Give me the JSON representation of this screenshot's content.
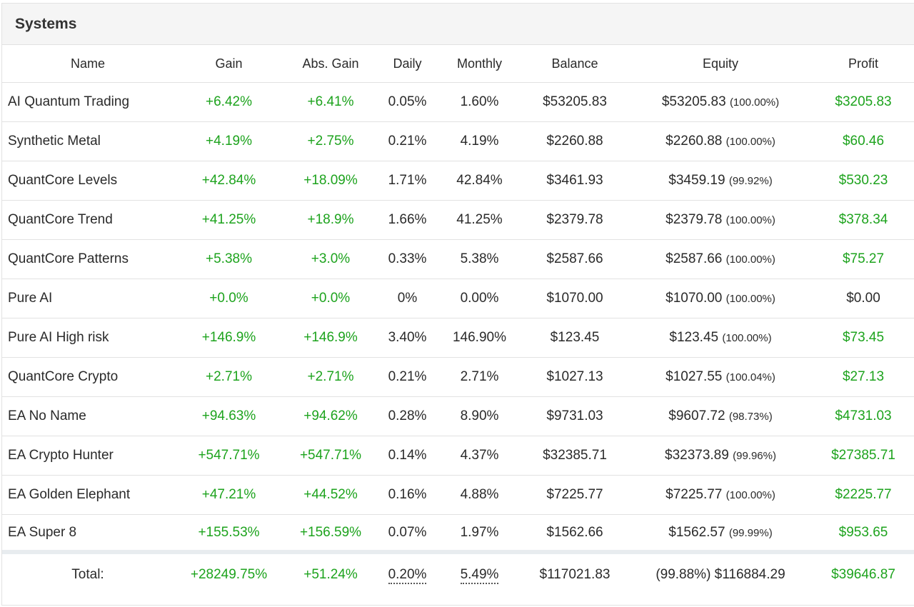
{
  "panel": {
    "title": "Systems"
  },
  "columns": [
    "Name",
    "Gain",
    "Abs. Gain",
    "Daily",
    "Monthly",
    "Balance",
    "Equity",
    "Profit"
  ],
  "rows": [
    {
      "name": "AI Quantum Trading",
      "gain": "+6.42%",
      "abs_gain": "+6.41%",
      "daily": "0.05%",
      "monthly": "1.60%",
      "balance": "$53205.83",
      "equity": "$53205.83",
      "equity_pct": "(100.00%)",
      "profit": "$3205.83",
      "profit_positive": true
    },
    {
      "name": "Synthetic Metal",
      "gain": "+4.19%",
      "abs_gain": "+2.75%",
      "daily": "0.21%",
      "monthly": "4.19%",
      "balance": "$2260.88",
      "equity": "$2260.88",
      "equity_pct": "(100.00%)",
      "profit": "$60.46",
      "profit_positive": true
    },
    {
      "name": "QuantCore Levels",
      "gain": "+42.84%",
      "abs_gain": "+18.09%",
      "daily": "1.71%",
      "monthly": "42.84%",
      "balance": "$3461.93",
      "equity": "$3459.19",
      "equity_pct": "(99.92%)",
      "profit": "$530.23",
      "profit_positive": true
    },
    {
      "name": "QuantCore Trend",
      "gain": "+41.25%",
      "abs_gain": "+18.9%",
      "daily": "1.66%",
      "monthly": "41.25%",
      "balance": "$2379.78",
      "equity": "$2379.78",
      "equity_pct": "(100.00%)",
      "profit": "$378.34",
      "profit_positive": true
    },
    {
      "name": "QuantCore Patterns",
      "gain": "+5.38%",
      "abs_gain": "+3.0%",
      "daily": "0.33%",
      "monthly": "5.38%",
      "balance": "$2587.66",
      "equity": "$2587.66",
      "equity_pct": "(100.00%)",
      "profit": "$75.27",
      "profit_positive": true
    },
    {
      "name": "Pure AI",
      "gain": "+0.0%",
      "abs_gain": "+0.0%",
      "daily": "0%",
      "monthly": "0.00%",
      "balance": "$1070.00",
      "equity": "$1070.00",
      "equity_pct": "(100.00%)",
      "profit": "$0.00",
      "profit_positive": false
    },
    {
      "name": "Pure AI High risk",
      "gain": "+146.9%",
      "abs_gain": "+146.9%",
      "daily": "3.40%",
      "monthly": "146.90%",
      "balance": "$123.45",
      "equity": "$123.45",
      "equity_pct": "(100.00%)",
      "profit": "$73.45",
      "profit_positive": true
    },
    {
      "name": "QuantCore Crypto",
      "gain": "+2.71%",
      "abs_gain": "+2.71%",
      "daily": "0.21%",
      "monthly": "2.71%",
      "balance": "$1027.13",
      "equity": "$1027.55",
      "equity_pct": "(100.04%)",
      "profit": "$27.13",
      "profit_positive": true
    },
    {
      "name": "EA No Name",
      "gain": "+94.63%",
      "abs_gain": "+94.62%",
      "daily": "0.28%",
      "monthly": "8.90%",
      "balance": "$9731.03",
      "equity": "$9607.72",
      "equity_pct": "(98.73%)",
      "profit": "$4731.03",
      "profit_positive": true
    },
    {
      "name": "EA Crypto Hunter",
      "gain": "+547.71%",
      "abs_gain": "+547.71%",
      "daily": "0.14%",
      "monthly": "4.37%",
      "balance": "$32385.71",
      "equity": "$32373.89",
      "equity_pct": "(99.96%)",
      "profit": "$27385.71",
      "profit_positive": true
    },
    {
      "name": "EA Golden Elephant",
      "gain": "+47.21%",
      "abs_gain": "+44.52%",
      "daily": "0.16%",
      "monthly": "4.88%",
      "balance": "$7225.77",
      "equity": "$7225.77",
      "equity_pct": "(100.00%)",
      "profit": "$2225.77",
      "profit_positive": true
    },
    {
      "name": "EA Super 8",
      "gain": "+155.53%",
      "abs_gain": "+156.59%",
      "daily": "0.07%",
      "monthly": "1.97%",
      "balance": "$1562.66",
      "equity": "$1562.57",
      "equity_pct": "(99.99%)",
      "profit": "$953.65",
      "profit_positive": true
    }
  ],
  "total": {
    "label": "Total:",
    "gain": "+28249.75%",
    "abs_gain": "+51.24%",
    "daily": "0.20%",
    "monthly": "5.49%",
    "balance": "$117021.83",
    "equity": "(99.88%) $116884.29",
    "profit": "$39646.87"
  },
  "colors": {
    "positive": "#1da31d",
    "neutral": "#2a2a2a",
    "header_bg": "#f5f5f5",
    "border": "#e2e2e2"
  }
}
